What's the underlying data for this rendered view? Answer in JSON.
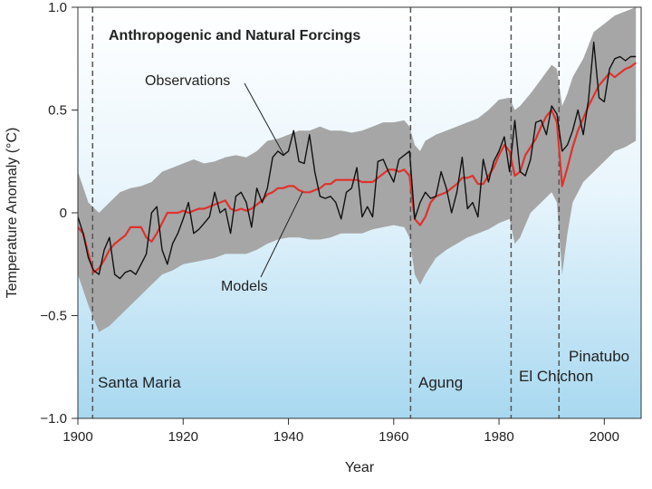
{
  "chart_data": {
    "type": "line",
    "title": "Anthropogenic and Natural Forcings",
    "xlabel": "Year",
    "ylabel": "Temperature Anomaly (°C)",
    "xlim": [
      1900,
      2007
    ],
    "ylim": [
      -1.0,
      1.0
    ],
    "x_ticks": [
      1900,
      1920,
      1940,
      1960,
      1980,
      2000
    ],
    "y_ticks": [
      -1.0,
      -0.5,
      0,
      0.5,
      1.0
    ],
    "y_tick_labels": [
      "−1.0",
      "−0.5",
      "0",
      "0.5",
      "1.0"
    ],
    "series": [
      {
        "name": "Observations",
        "color": "#111111",
        "points": [
          [
            1900,
            -0.02
          ],
          [
            1901,
            -0.1
          ],
          [
            1902,
            -0.22
          ],
          [
            1903,
            -0.28
          ],
          [
            1904,
            -0.3
          ],
          [
            1905,
            -0.18
          ],
          [
            1906,
            -0.12
          ],
          [
            1907,
            -0.3
          ],
          [
            1908,
            -0.32
          ],
          [
            1909,
            -0.29
          ],
          [
            1910,
            -0.28
          ],
          [
            1911,
            -0.3
          ],
          [
            1912,
            -0.25
          ],
          [
            1913,
            -0.2
          ],
          [
            1914,
            0.0
          ],
          [
            1915,
            0.03
          ],
          [
            1916,
            -0.18
          ],
          [
            1917,
            -0.25
          ],
          [
            1918,
            -0.15
          ],
          [
            1919,
            -0.1
          ],
          [
            1920,
            -0.03
          ],
          [
            1921,
            0.05
          ],
          [
            1922,
            -0.1
          ],
          [
            1923,
            -0.08
          ],
          [
            1924,
            -0.05
          ],
          [
            1925,
            -0.02
          ],
          [
            1926,
            0.1
          ],
          [
            1927,
            0.0
          ],
          [
            1928,
            0.02
          ],
          [
            1929,
            -0.1
          ],
          [
            1930,
            0.08
          ],
          [
            1931,
            0.1
          ],
          [
            1932,
            0.05
          ],
          [
            1933,
            -0.07
          ],
          [
            1934,
            0.12
          ],
          [
            1935,
            0.05
          ],
          [
            1936,
            0.12
          ],
          [
            1937,
            0.27
          ],
          [
            1938,
            0.3
          ],
          [
            1939,
            0.28
          ],
          [
            1940,
            0.3
          ],
          [
            1941,
            0.4
          ],
          [
            1942,
            0.25
          ],
          [
            1943,
            0.24
          ],
          [
            1944,
            0.38
          ],
          [
            1945,
            0.2
          ],
          [
            1946,
            0.08
          ],
          [
            1947,
            0.07
          ],
          [
            1948,
            0.08
          ],
          [
            1949,
            0.05
          ],
          [
            1950,
            -0.03
          ],
          [
            1951,
            0.1
          ],
          [
            1952,
            0.12
          ],
          [
            1953,
            0.22
          ],
          [
            1954,
            -0.02
          ],
          [
            1955,
            0.03
          ],
          [
            1956,
            -0.02
          ],
          [
            1957,
            0.25
          ],
          [
            1958,
            0.26
          ],
          [
            1959,
            0.2
          ],
          [
            1960,
            0.15
          ],
          [
            1961,
            0.26
          ],
          [
            1962,
            0.28
          ],
          [
            1963,
            0.3
          ],
          [
            1964,
            -0.03
          ],
          [
            1965,
            0.05
          ],
          [
            1966,
            0.1
          ],
          [
            1967,
            0.07
          ],
          [
            1968,
            0.08
          ],
          [
            1969,
            0.2
          ],
          [
            1970,
            0.12
          ],
          [
            1971,
            0.0
          ],
          [
            1972,
            0.1
          ],
          [
            1973,
            0.27
          ],
          [
            1974,
            0.02
          ],
          [
            1975,
            0.05
          ],
          [
            1976,
            -0.02
          ],
          [
            1977,
            0.26
          ],
          [
            1978,
            0.15
          ],
          [
            1979,
            0.25
          ],
          [
            1980,
            0.3
          ],
          [
            1981,
            0.37
          ],
          [
            1982,
            0.2
          ],
          [
            1983,
            0.45
          ],
          [
            1984,
            0.2
          ],
          [
            1985,
            0.18
          ],
          [
            1986,
            0.26
          ],
          [
            1987,
            0.44
          ],
          [
            1988,
            0.45
          ],
          [
            1989,
            0.38
          ],
          [
            1990,
            0.52
          ],
          [
            1991,
            0.48
          ],
          [
            1992,
            0.3
          ],
          [
            1993,
            0.33
          ],
          [
            1994,
            0.4
          ],
          [
            1995,
            0.5
          ],
          [
            1996,
            0.38
          ],
          [
            1997,
            0.55
          ],
          [
            1998,
            0.83
          ],
          [
            1999,
            0.56
          ],
          [
            2000,
            0.54
          ],
          [
            2001,
            0.7
          ],
          [
            2002,
            0.75
          ],
          [
            2003,
            0.76
          ],
          [
            2004,
            0.74
          ],
          [
            2005,
            0.76
          ],
          [
            2006,
            0.76
          ]
        ]
      },
      {
        "name": "Models",
        "color": "#e0322d",
        "points": [
          [
            1900,
            -0.07
          ],
          [
            1901,
            -0.1
          ],
          [
            1902,
            -0.2
          ],
          [
            1903,
            -0.29
          ],
          [
            1904,
            -0.27
          ],
          [
            1905,
            -0.23
          ],
          [
            1906,
            -0.18
          ],
          [
            1907,
            -0.15
          ],
          [
            1908,
            -0.13
          ],
          [
            1909,
            -0.11
          ],
          [
            1910,
            -0.07
          ],
          [
            1911,
            -0.07
          ],
          [
            1912,
            -0.07
          ],
          [
            1913,
            -0.12
          ],
          [
            1914,
            -0.14
          ],
          [
            1915,
            -0.1
          ],
          [
            1916,
            -0.05
          ],
          [
            1917,
            0.0
          ],
          [
            1918,
            0.0
          ],
          [
            1919,
            0.0
          ],
          [
            1920,
            0.01
          ],
          [
            1921,
            0.0
          ],
          [
            1922,
            0.01
          ],
          [
            1923,
            0.02
          ],
          [
            1924,
            0.02
          ],
          [
            1925,
            0.03
          ],
          [
            1926,
            0.04
          ],
          [
            1927,
            0.05
          ],
          [
            1928,
            0.06
          ],
          [
            1929,
            0.02
          ],
          [
            1930,
            0.01
          ],
          [
            1931,
            0.02
          ],
          [
            1932,
            0.01
          ],
          [
            1933,
            0.02
          ],
          [
            1934,
            0.04
          ],
          [
            1935,
            0.06
          ],
          [
            1936,
            0.09
          ],
          [
            1937,
            0.1
          ],
          [
            1938,
            0.12
          ],
          [
            1939,
            0.12
          ],
          [
            1940,
            0.13
          ],
          [
            1941,
            0.13
          ],
          [
            1942,
            0.11
          ],
          [
            1943,
            0.1
          ],
          [
            1944,
            0.1
          ],
          [
            1945,
            0.11
          ],
          [
            1946,
            0.12
          ],
          [
            1947,
            0.14
          ],
          [
            1948,
            0.14
          ],
          [
            1949,
            0.16
          ],
          [
            1950,
            0.16
          ],
          [
            1951,
            0.16
          ],
          [
            1952,
            0.16
          ],
          [
            1953,
            0.16
          ],
          [
            1954,
            0.15
          ],
          [
            1955,
            0.15
          ],
          [
            1956,
            0.15
          ],
          [
            1957,
            0.17
          ],
          [
            1958,
            0.19
          ],
          [
            1959,
            0.21
          ],
          [
            1960,
            0.21
          ],
          [
            1961,
            0.2
          ],
          [
            1962,
            0.21
          ],
          [
            1963,
            0.18
          ],
          [
            1964,
            -0.03
          ],
          [
            1965,
            -0.06
          ],
          [
            1966,
            -0.02
          ],
          [
            1967,
            0.05
          ],
          [
            1968,
            0.08
          ],
          [
            1969,
            0.09
          ],
          [
            1970,
            0.1
          ],
          [
            1971,
            0.12
          ],
          [
            1972,
            0.14
          ],
          [
            1973,
            0.17
          ],
          [
            1974,
            0.17
          ],
          [
            1975,
            0.18
          ],
          [
            1976,
            0.14
          ],
          [
            1977,
            0.14
          ],
          [
            1978,
            0.18
          ],
          [
            1979,
            0.22
          ],
          [
            1980,
            0.28
          ],
          [
            1981,
            0.33
          ],
          [
            1982,
            0.3
          ],
          [
            1983,
            0.18
          ],
          [
            1984,
            0.2
          ],
          [
            1985,
            0.28
          ],
          [
            1986,
            0.32
          ],
          [
            1987,
            0.36
          ],
          [
            1988,
            0.42
          ],
          [
            1989,
            0.47
          ],
          [
            1990,
            0.5
          ],
          [
            1991,
            0.44
          ],
          [
            1992,
            0.13
          ],
          [
            1993,
            0.22
          ],
          [
            1994,
            0.32
          ],
          [
            1995,
            0.4
          ],
          [
            1996,
            0.46
          ],
          [
            1997,
            0.52
          ],
          [
            1998,
            0.57
          ],
          [
            1999,
            0.62
          ],
          [
            2000,
            0.65
          ],
          [
            2001,
            0.68
          ],
          [
            2002,
            0.66
          ],
          [
            2003,
            0.68
          ],
          [
            2004,
            0.7
          ],
          [
            2005,
            0.71
          ],
          [
            2006,
            0.73
          ]
        ]
      }
    ],
    "model_range": {
      "name": "Model range",
      "color": "#a6a6a6",
      "years": [
        1900,
        1902,
        1904,
        1906,
        1908,
        1910,
        1912,
        1914,
        1916,
        1918,
        1920,
        1922,
        1924,
        1926,
        1928,
        1930,
        1932,
        1934,
        1936,
        1938,
        1940,
        1942,
        1944,
        1946,
        1948,
        1950,
        1952,
        1954,
        1956,
        1958,
        1960,
        1962,
        1963,
        1964,
        1965,
        1966,
        1968,
        1970,
        1972,
        1974,
        1976,
        1978,
        1980,
        1982,
        1983,
        1984,
        1986,
        1988,
        1990,
        1991,
        1992,
        1993,
        1994,
        1996,
        1998,
        2000,
        2002,
        2004,
        2006
      ],
      "upper": [
        0.2,
        0.05,
        0.0,
        0.05,
        0.1,
        0.12,
        0.13,
        0.15,
        0.2,
        0.22,
        0.24,
        0.26,
        0.24,
        0.25,
        0.27,
        0.28,
        0.27,
        0.3,
        0.35,
        0.36,
        0.38,
        0.4,
        0.4,
        0.42,
        0.4,
        0.4,
        0.39,
        0.4,
        0.42,
        0.44,
        0.44,
        0.45,
        0.42,
        0.33,
        0.3,
        0.35,
        0.38,
        0.4,
        0.42,
        0.44,
        0.46,
        0.5,
        0.55,
        0.56,
        0.5,
        0.52,
        0.58,
        0.65,
        0.72,
        0.7,
        0.52,
        0.58,
        0.66,
        0.75,
        0.88,
        0.92,
        0.96,
        0.98,
        1.0
      ],
      "lower": [
        -0.3,
        -0.45,
        -0.58,
        -0.55,
        -0.5,
        -0.45,
        -0.4,
        -0.35,
        -0.3,
        -0.28,
        -0.25,
        -0.24,
        -0.23,
        -0.22,
        -0.2,
        -0.2,
        -0.2,
        -0.18,
        -0.15,
        -0.13,
        -0.12,
        -0.12,
        -0.13,
        -0.13,
        -0.12,
        -0.1,
        -0.1,
        -0.1,
        -0.08,
        -0.07,
        -0.06,
        -0.07,
        -0.12,
        -0.3,
        -0.35,
        -0.3,
        -0.22,
        -0.18,
        -0.15,
        -0.12,
        -0.1,
        -0.08,
        -0.05,
        -0.03,
        -0.15,
        -0.12,
        0.0,
        0.05,
        0.1,
        0.05,
        -0.3,
        -0.1,
        0.05,
        0.15,
        0.2,
        0.25,
        0.3,
        0.32,
        0.35
      ]
    },
    "events": [
      {
        "name": "Santa Maria",
        "year": 1902.8
      },
      {
        "name": "Agung",
        "year": 1963.2
      },
      {
        "name": "El Chichon",
        "year": 1982.3
      },
      {
        "name": "Pinatubo",
        "year": 1991.4
      }
    ],
    "annotations": [
      {
        "text": "Observations",
        "points_to": 1940
      },
      {
        "text": "Models",
        "points_to": 1946
      }
    ],
    "grid": false,
    "legend": "none"
  }
}
